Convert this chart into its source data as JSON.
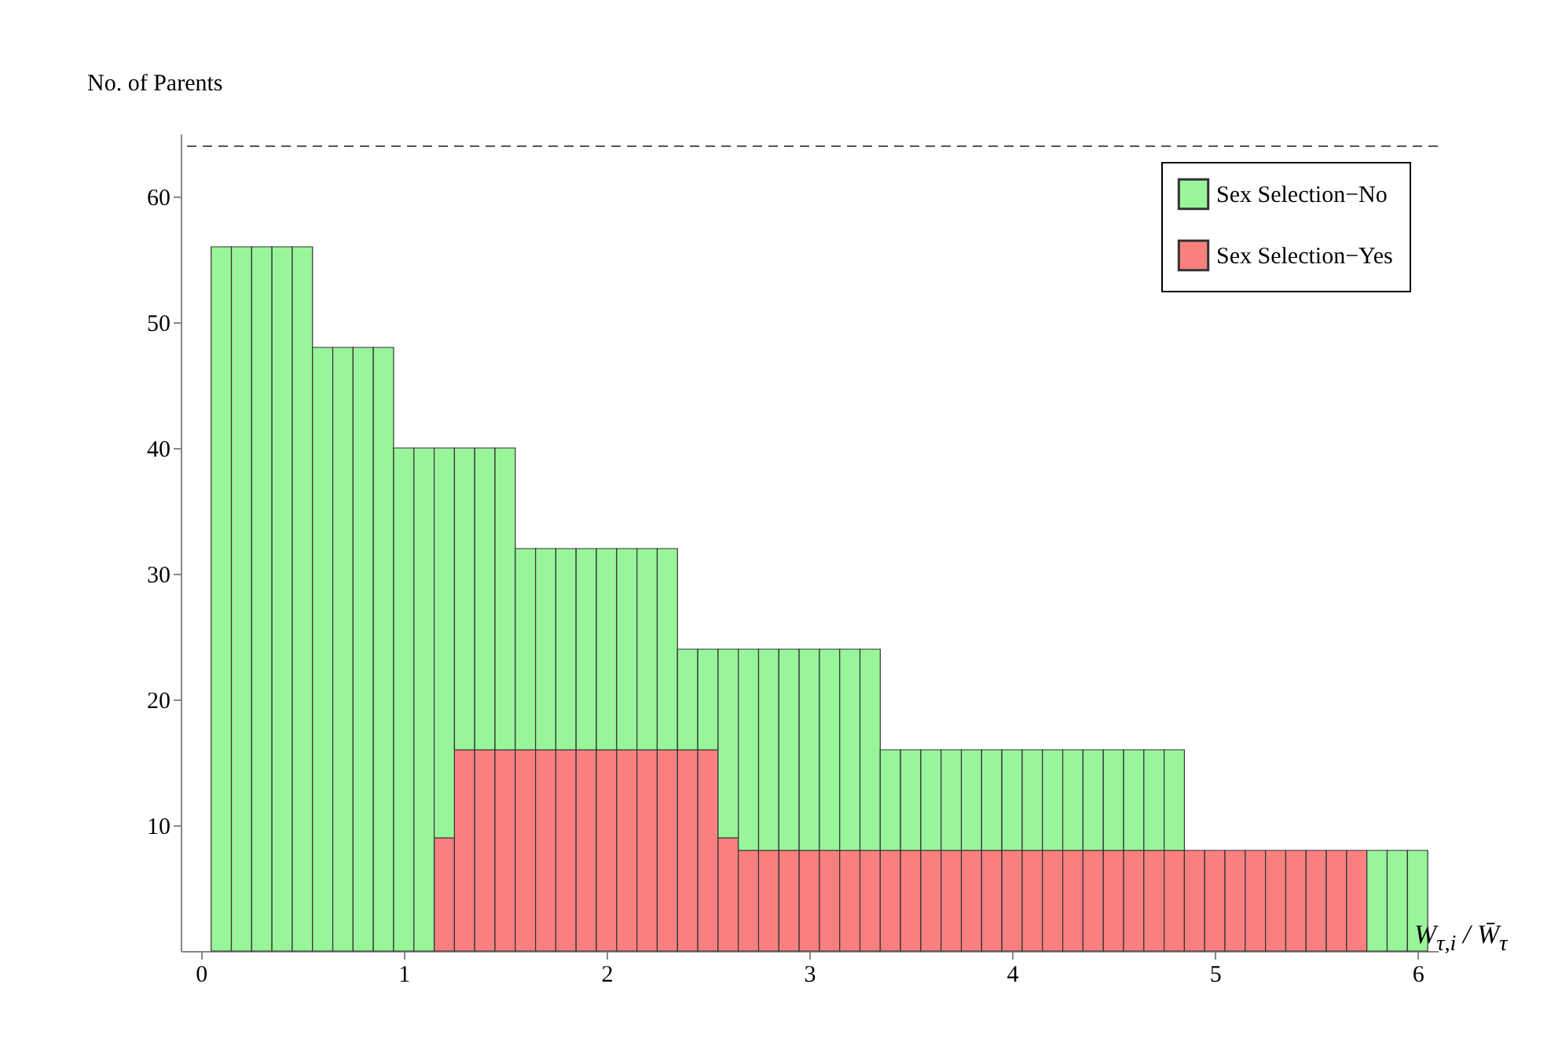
{
  "chart_data": {
    "type": "bar",
    "xlabel": "W$_{τ,i}$ / W̄$_{τ}$",
    "ylabel": "No. of Parents",
    "x": [
      0.1,
      0.2,
      0.3,
      0.4,
      0.5,
      0.6,
      0.7,
      0.8,
      0.9,
      1.0,
      1.1,
      1.2,
      1.3,
      1.4,
      1.5,
      1.6,
      1.7,
      1.8,
      1.9,
      2.0,
      2.1,
      2.2,
      2.3,
      2.4,
      2.5,
      2.6,
      2.7,
      2.8,
      2.9,
      3.0,
      3.1,
      3.2,
      3.3,
      3.4,
      3.5,
      3.6,
      3.7,
      3.8,
      3.9,
      4.0,
      4.1,
      4.2,
      4.3,
      4.4,
      4.5,
      4.6,
      4.7,
      4.8,
      4.9,
      5.0,
      5.1,
      5.2,
      5.3,
      5.4,
      5.5,
      5.6,
      5.7,
      5.8,
      5.9,
      6.0
    ],
    "stacked": true,
    "series": [
      {
        "name": "Sex Selection−Yes",
        "color": "#fa8080",
        "values": [
          null,
          null,
          null,
          null,
          null,
          null,
          null,
          null,
          null,
          null,
          null,
          9,
          16,
          16,
          16,
          16,
          16,
          16,
          16,
          16,
          16,
          16,
          16,
          16,
          16,
          9,
          8,
          8,
          8,
          8,
          8,
          8,
          8,
          8,
          8,
          8,
          8,
          8,
          8,
          8,
          8,
          8,
          8,
          8,
          8,
          8,
          8,
          8,
          8,
          8,
          8,
          8,
          8,
          8,
          8,
          8,
          8,
          null,
          null,
          null
        ]
      },
      {
        "name": "Sex Selection−No",
        "color": "#99f59a",
        "values": [
          56,
          56,
          56,
          56,
          56,
          48,
          48,
          48,
          48,
          40,
          40,
          31,
          24,
          24,
          24,
          16,
          16,
          16,
          16,
          16,
          16,
          16,
          16,
          8,
          8,
          15,
          16,
          16,
          16,
          16,
          16,
          16,
          16,
          8,
          8,
          8,
          8,
          8,
          8,
          8,
          8,
          8,
          8,
          8,
          8,
          8,
          8,
          8,
          null,
          null,
          null,
          null,
          null,
          null,
          null,
          null,
          null,
          8,
          8,
          8
        ]
      }
    ],
    "xlim": [
      -0.1,
      6.1
    ],
    "xticks": [
      0,
      1,
      2,
      3,
      4,
      5,
      6
    ],
    "ylim": [
      0,
      65
    ],
    "yticks": [
      10,
      20,
      30,
      40,
      50,
      60
    ],
    "ref_lines": [
      {
        "axis": "y",
        "value": 64,
        "line_style": "dashed",
        "color": "#555555"
      }
    ],
    "legend": "top right"
  }
}
